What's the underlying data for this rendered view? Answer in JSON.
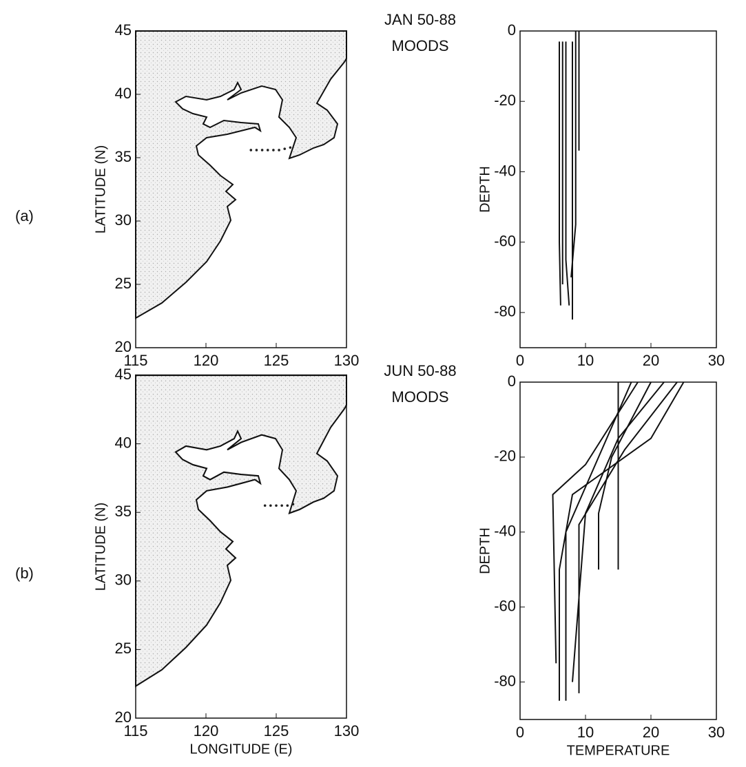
{
  "chart_data": [
    {
      "type": "map",
      "panel": "(a)",
      "ylabel": "LATITUDE (N)",
      "xlim": [
        115,
        130
      ],
      "ylim": [
        20,
        45
      ],
      "xticks": [
        115,
        120,
        125,
        130
      ],
      "yticks": [
        20,
        25,
        30,
        35,
        40,
        45
      ],
      "x": [
        123.2,
        123.6,
        124.0,
        124.4,
        124.8,
        125.2,
        125.6,
        126.0
      ],
      "values": [
        35.6,
        35.6,
        35.6,
        35.6,
        35.6,
        35.6,
        35.7,
        35.8
      ],
      "color": "#222"
    },
    {
      "type": "profile",
      "title": [
        "JAN 50-88",
        "MOODS"
      ],
      "ylabel": "DEPTH",
      "xlim": [
        0,
        30
      ],
      "ylim": [
        -90,
        0
      ],
      "xticks": [
        0,
        10,
        20,
        30
      ],
      "yticks": [
        -80,
        -60,
        -40,
        -20,
        0
      ],
      "color": "#111",
      "series": [
        {
          "x": [
            6,
            6,
            6.2
          ],
          "values": [
            -3,
            -60,
            -78
          ]
        },
        {
          "x": [
            7,
            7,
            7.5
          ],
          "values": [
            -3,
            -65,
            -78
          ]
        },
        {
          "x": [
            8,
            8,
            8
          ],
          "values": [
            -3,
            -40,
            -82
          ]
        },
        {
          "x": [
            9,
            9
          ],
          "values": [
            0,
            -34
          ]
        },
        {
          "x": [
            8.5,
            8.5,
            7.8
          ],
          "values": [
            0,
            -55,
            -70
          ]
        },
        {
          "x": [
            6.5,
            6.5
          ],
          "values": [
            -3,
            -72
          ]
        }
      ]
    },
    {
      "type": "map",
      "panel": "(b)",
      "ylabel": "LATITUDE (N)",
      "xlabel": "LONGITUDE (E)",
      "xlim": [
        115,
        130
      ],
      "ylim": [
        20,
        45
      ],
      "xticks": [
        115,
        120,
        125,
        130
      ],
      "yticks": [
        20,
        25,
        30,
        35,
        40,
        45
      ],
      "x": [
        124.2,
        124.6,
        125.0,
        125.4,
        125.8,
        126.2
      ],
      "values": [
        35.5,
        35.5,
        35.5,
        35.5,
        35.5,
        35.6
      ],
      "color": "#222"
    },
    {
      "type": "profile",
      "title": [
        "JUN 50-88",
        "MOODS"
      ],
      "ylabel": "DEPTH",
      "xlabel": "TEMPERATURE",
      "xlim": [
        0,
        30
      ],
      "ylim": [
        -90,
        0
      ],
      "xticks": [
        0,
        10,
        20,
        30
      ],
      "yticks": [
        -80,
        -60,
        -40,
        -20,
        0
      ],
      "color": "#111",
      "series": [
        {
          "x": [
            25,
            20,
            8,
            6,
            6
          ],
          "values": [
            0,
            -15,
            -30,
            -50,
            -85
          ]
        },
        {
          "x": [
            17,
            12,
            7,
            7
          ],
          "values": [
            0,
            -20,
            -40,
            -85
          ]
        },
        {
          "x": [
            22,
            15,
            10,
            8
          ],
          "values": [
            0,
            -15,
            -35,
            -80
          ]
        },
        {
          "x": [
            18,
            10,
            5,
            5.5
          ],
          "values": [
            0,
            -22,
            -30,
            -75
          ]
        },
        {
          "x": [
            20,
            14,
            12,
            12
          ],
          "values": [
            0,
            -20,
            -35,
            -50
          ]
        },
        {
          "x": [
            15,
            15
          ],
          "values": [
            0,
            -50
          ]
        },
        {
          "x": [
            24,
            16,
            9,
            9
          ],
          "values": [
            0,
            -18,
            -38,
            -83
          ]
        }
      ]
    }
  ]
}
